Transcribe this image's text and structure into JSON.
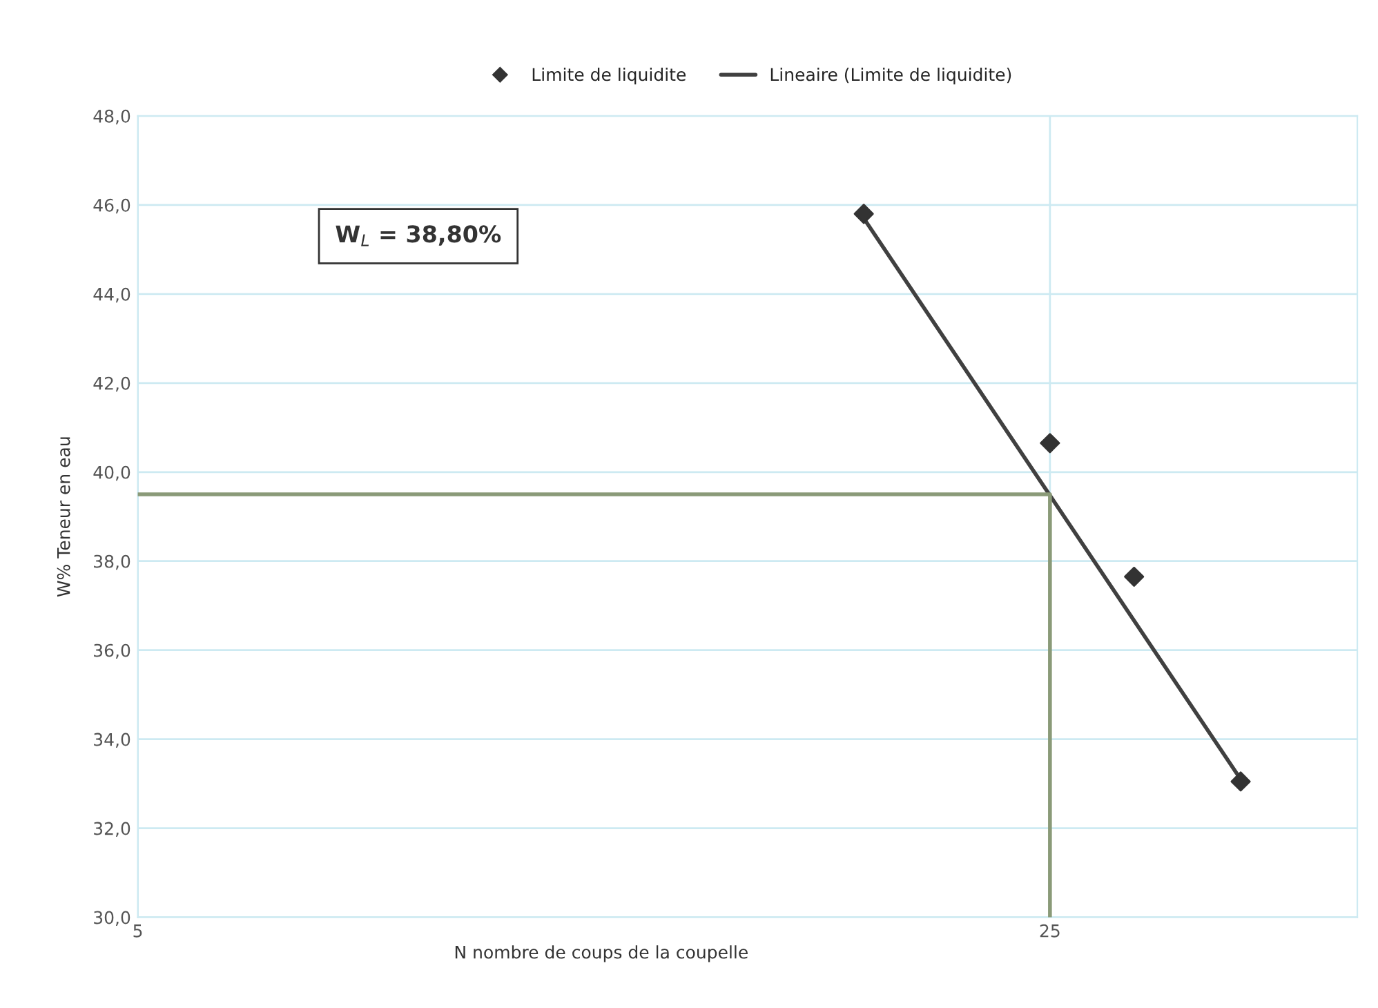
{
  "chart_data": {
    "type": "scatter",
    "xlabel": "N nombre de coups de la coupelle",
    "ylabel": "W% Teneur en eau",
    "log": "x",
    "xlim": [
      5,
      43
    ],
    "xticks": [
      5,
      25
    ],
    "ylim": [
      30,
      48
    ],
    "yticks": [
      {
        "value": 30,
        "label": "30,0"
      },
      {
        "value": 32,
        "label": "32,0"
      },
      {
        "value": 34,
        "label": "34,0"
      },
      {
        "value": 36,
        "label": "36,0"
      },
      {
        "value": 38,
        "label": "38,0"
      },
      {
        "value": 40,
        "label": "40,0"
      },
      {
        "value": 42,
        "label": "42,0"
      },
      {
        "value": 44,
        "label": "44,0"
      },
      {
        "value": 46,
        "label": "46,0"
      },
      {
        "value": 48,
        "label": "48,0"
      }
    ],
    "grid": true,
    "legend": "top",
    "series": [
      {
        "name": "Limite de liquidite",
        "marker": "diamond",
        "color": "#333333",
        "x": [
          18,
          25,
          29,
          35
        ],
        "values": [
          45.8,
          40.65,
          37.65,
          33.05
        ]
      },
      {
        "name": "Lineaire (Limite de liquidite)",
        "type": "line",
        "marker": "none",
        "color": "#404040",
        "x": [
          18,
          35
        ],
        "values": [
          45.7,
          33.1
        ]
      },
      {
        "type": "line",
        "marker": "none",
        "color": "#8a9a78",
        "x": [
          5,
          25,
          25
        ],
        "values": [
          39.5,
          39.5,
          30
        ]
      }
    ],
    "annotations": [
      {
        "text": "W$_{L}$ = 38,80%"
      }
    ]
  }
}
